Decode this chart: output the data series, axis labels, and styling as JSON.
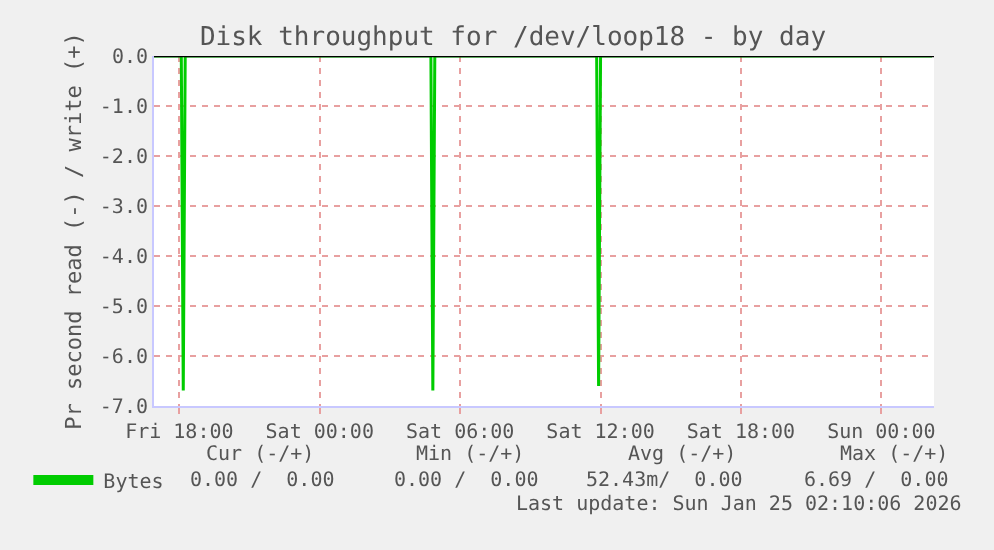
{
  "chart_data": {
    "type": "line",
    "title": "Disk throughput for /dev/loop18 - by day",
    "ylabel": "Pr second read (-) / write (+)",
    "series": [
      {
        "name": "Bytes",
        "color": "#00cc00",
        "x": [
          "2026-01-23T16:55",
          "2026-01-23T18:05",
          "2026-01-23T18:10",
          "2026-01-23T18:15",
          "2026-01-24T04:45",
          "2026-01-24T04:50",
          "2026-01-24T04:55",
          "2026-01-24T11:50",
          "2026-01-24T11:55",
          "2026-01-24T12:00",
          "2026-01-25T02:10"
        ],
        "values": [
          0,
          0,
          -6.69,
          0,
          0,
          -6.69,
          0,
          0,
          -6.6,
          0,
          0
        ]
      }
    ],
    "xlim": [
      "2026-01-23T16:55",
      "2026-01-25T02:15"
    ],
    "xticks": [
      {
        "value": "2026-01-23T18:00",
        "label": "Fri 18:00"
      },
      {
        "value": "2026-01-24T00:00",
        "label": "Sat 00:00"
      },
      {
        "value": "2026-01-24T06:00",
        "label": "Sat 06:00"
      },
      {
        "value": "2026-01-24T12:00",
        "label": "Sat 12:00"
      },
      {
        "value": "2026-01-24T18:00",
        "label": "Sat 18:00"
      },
      {
        "value": "2026-01-25T00:00",
        "label": "Sun 00:00"
      }
    ],
    "ylim": [
      -7,
      0
    ],
    "yticks": [
      {
        "value": -7,
        "label": "-7.0"
      },
      {
        "value": -6,
        "label": "-6.0"
      },
      {
        "value": -5,
        "label": "-5.0"
      },
      {
        "value": -4,
        "label": "-4.0"
      },
      {
        "value": -3,
        "label": "-3.0"
      },
      {
        "value": -2,
        "label": "-2.0"
      },
      {
        "value": -1,
        "label": "-1.0"
      },
      {
        "value": 0,
        "label": "0.0"
      }
    ],
    "ref_lines": [
      {
        "axis": "y",
        "value": 0,
        "color": "#000000"
      }
    ],
    "grid": true,
    "legend": "bottom left",
    "marker": "none",
    "line_style": "solid",
    "annotations": [
      "Cur (-/+)",
      "Min (-/+)",
      "Avg (-/+)",
      "Max (-/+)",
      "0.00 /  0.00",
      "0.00 /  0.00",
      "52.43m/  0.00",
      "6.69 /  0.00",
      "Last update: Sun Jan 25 02:10:06 2026"
    ]
  }
}
